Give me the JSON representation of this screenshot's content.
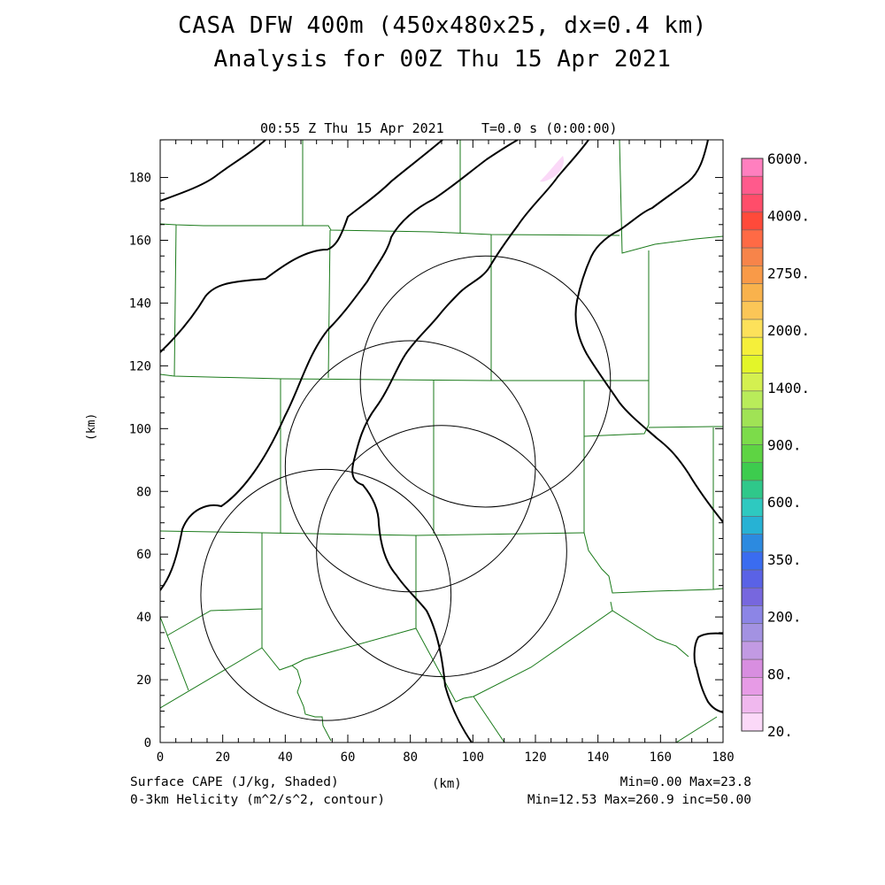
{
  "title": {
    "line1": "CASA DFW 400m (450x480x25, dx=0.4 km)",
    "line2": "Analysis for 00Z Thu 15 Apr 2021"
  },
  "plot_header": {
    "time": "00:55 Z Thu 15 Apr 2021",
    "model_time": "T=0.0 s (0:00:00)"
  },
  "axes": {
    "x_label": "(km)",
    "y_label": "(km)",
    "x_ticks": [
      "0",
      "20",
      "40",
      "60",
      "80",
      "100",
      "120",
      "140",
      "160",
      "180"
    ],
    "y_ticks": [
      "0",
      "20",
      "40",
      "60",
      "80",
      "100",
      "120",
      "140",
      "160",
      "180"
    ],
    "x_range_km": [
      0,
      180
    ],
    "y_range_km": [
      0,
      192
    ]
  },
  "footer": {
    "field1": "Surface CAPE (J/kg, Shaded)",
    "field2": "0-3km Helicity (m^2/s^2, contour)",
    "stats1": "Min=0.00 Max=23.8",
    "stats2": "Min=12.53 Max=260.9 inc=50.00"
  },
  "colorbar": {
    "labels": [
      "6000.",
      "4000.",
      "2750.",
      "2000.",
      "1400.",
      "900.",
      "600.",
      "350.",
      "200.",
      "80.",
      "20."
    ],
    "colors_top_to_bottom": [
      "#ff7fbf",
      "#ff5a8c",
      "#ff4d6a",
      "#ff4a3a",
      "#ff6a45",
      "#f7844a",
      "#f99a48",
      "#f9b24c",
      "#fbc657",
      "#fde15a",
      "#f5ef3a",
      "#e3f529",
      "#d4f050",
      "#b9ec5a",
      "#a0e355",
      "#7cdc4a",
      "#5ed443",
      "#3dcc4e",
      "#2fc88a",
      "#2ec9c0",
      "#27b2d4",
      "#2c8ae0",
      "#3a6cf0",
      "#5a62e6",
      "#7767de",
      "#8c85e6",
      "#a392e2",
      "#c29ae3",
      "#d88ee0",
      "#e79be6",
      "#f0b8ee",
      "#fbd9f8"
    ]
  },
  "map": {
    "radar_circles_km": [
      {
        "cx": 53,
        "cy": 47,
        "r": 40
      },
      {
        "cx": 80,
        "cy": 88,
        "r": 40
      },
      {
        "cx": 90,
        "cy": 61,
        "r": 40
      },
      {
        "cx": 104,
        "cy": 115,
        "r": 40
      }
    ],
    "county_color": "#1a7a1a",
    "contour_color": "#000000",
    "cape_color": "#fbd9f8"
  }
}
